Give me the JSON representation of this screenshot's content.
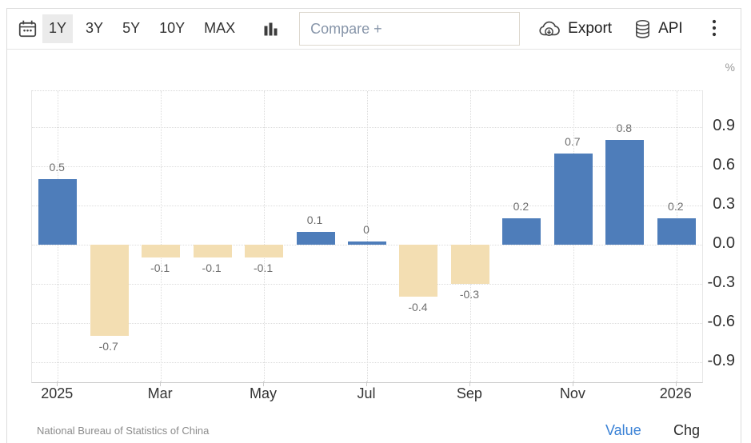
{
  "toolbar": {
    "range_buttons": [
      {
        "label": "1Y",
        "selected": true
      },
      {
        "label": "3Y",
        "selected": false
      },
      {
        "label": "5Y",
        "selected": false
      },
      {
        "label": "10Y",
        "selected": false
      },
      {
        "label": "MAX",
        "selected": false
      }
    ],
    "compare_placeholder": "Compare +",
    "export_label": "Export",
    "api_label": "API"
  },
  "chart_data": {
    "type": "bar",
    "unit": "%",
    "values": [
      0.5,
      -0.7,
      -0.1,
      -0.1,
      -0.1,
      0.1,
      0,
      -0.4,
      -0.3,
      0.2,
      0.7,
      0.8,
      0.2
    ],
    "bar_labels": [
      "0.5",
      "-0.7",
      "-0.1",
      "-0.1",
      "-0.1",
      "0.1",
      "0",
      "-0.4",
      "-0.3",
      "0.2",
      "0.7",
      "0.8",
      "0.2"
    ],
    "x_ticks": [
      {
        "slot": 0,
        "label": "2025"
      },
      {
        "slot": 2,
        "label": "Mar"
      },
      {
        "slot": 4,
        "label": "May"
      },
      {
        "slot": 6,
        "label": "Jul"
      },
      {
        "slot": 8,
        "label": "Sep"
      },
      {
        "slot": 10,
        "label": "Nov"
      },
      {
        "slot": 12,
        "label": "2026"
      }
    ],
    "y_ticks": [
      {
        "value": 0.9,
        "label": "0.9"
      },
      {
        "value": 0.6,
        "label": "0.6"
      },
      {
        "value": 0.3,
        "label": "0.3"
      },
      {
        "value": 0,
        "label": "0.0"
      },
      {
        "value": -0.3,
        "label": "-0.3"
      },
      {
        "value": -0.6,
        "label": "-0.6"
      },
      {
        "value": -0.9,
        "label": "-0.9"
      }
    ],
    "ylim": [
      -1.054,
      1.176
    ],
    "grid": true,
    "legend": "none",
    "colors": {
      "positive_bar": "#4e7dba",
      "negative_bar": "#f3deb2",
      "grid_line": "#dcdcdc",
      "axis_line": "#cccccc",
      "bar_label": "#6e6e6e",
      "axis_label": "#333333",
      "unit_label": "#9a9a9a"
    }
  },
  "footer": {
    "source": "National Bureau of Statistics of China",
    "value_link": "Value",
    "chg_link": "Chg",
    "value_link_color": "#3b82d6"
  }
}
